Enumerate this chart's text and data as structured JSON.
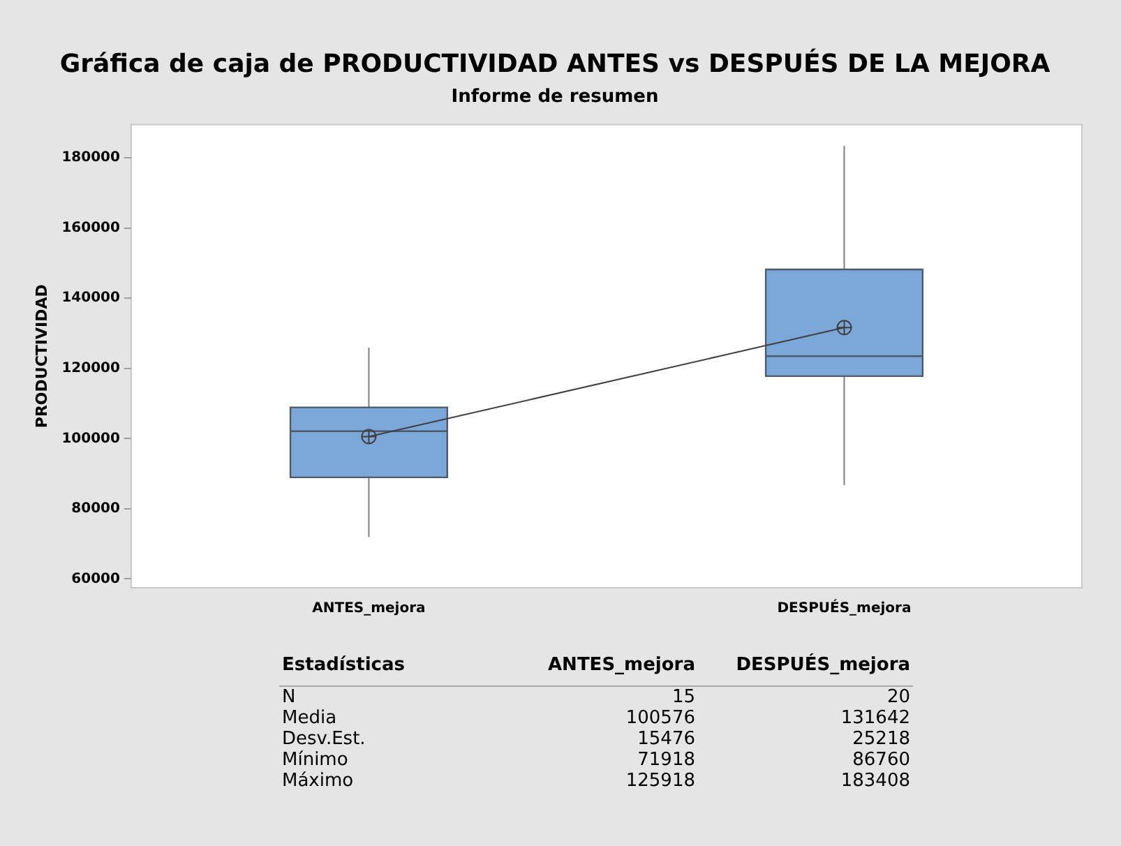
{
  "chart_data": {
    "type": "box",
    "title": "Gráfica de caja de PRODUCTIVIDAD ANTES vs DESPUÉS DE LA MEJORA",
    "subtitle": "Informe de resumen",
    "ylabel": "PRODUCTIVIDAD",
    "categories": [
      "ANTES_mejora",
      "DESPUÉS_mejora"
    ],
    "color": "#7ba7d9",
    "boxes": [
      {
        "low": 71918,
        "q1": 88950,
        "median": 102100,
        "q3": 108900,
        "high": 125918
      },
      {
        "low": 86760,
        "q1": 117800,
        "median": 123500,
        "q3": 148200,
        "high": 183408
      }
    ],
    "series": [
      {
        "type": "line",
        "color": "#404040",
        "values": [
          100576,
          131642
        ]
      }
    ],
    "ylim": [
      57500,
      189500
    ],
    "yticks": [
      60000,
      80000,
      100000,
      120000,
      140000,
      160000,
      180000
    ],
    "grid": false,
    "legend": false,
    "marker": "circle",
    "annotations": [
      "Estadísticas",
      "ANTES_mejora",
      "DESPUÉS_mejora",
      "N",
      "15",
      "20",
      "Media",
      "100576",
      "131642",
      "Desv.Est.",
      "15476",
      "25218",
      "Mínimo",
      "71918",
      "86760",
      "Máximo",
      "125918",
      "183408"
    ]
  }
}
